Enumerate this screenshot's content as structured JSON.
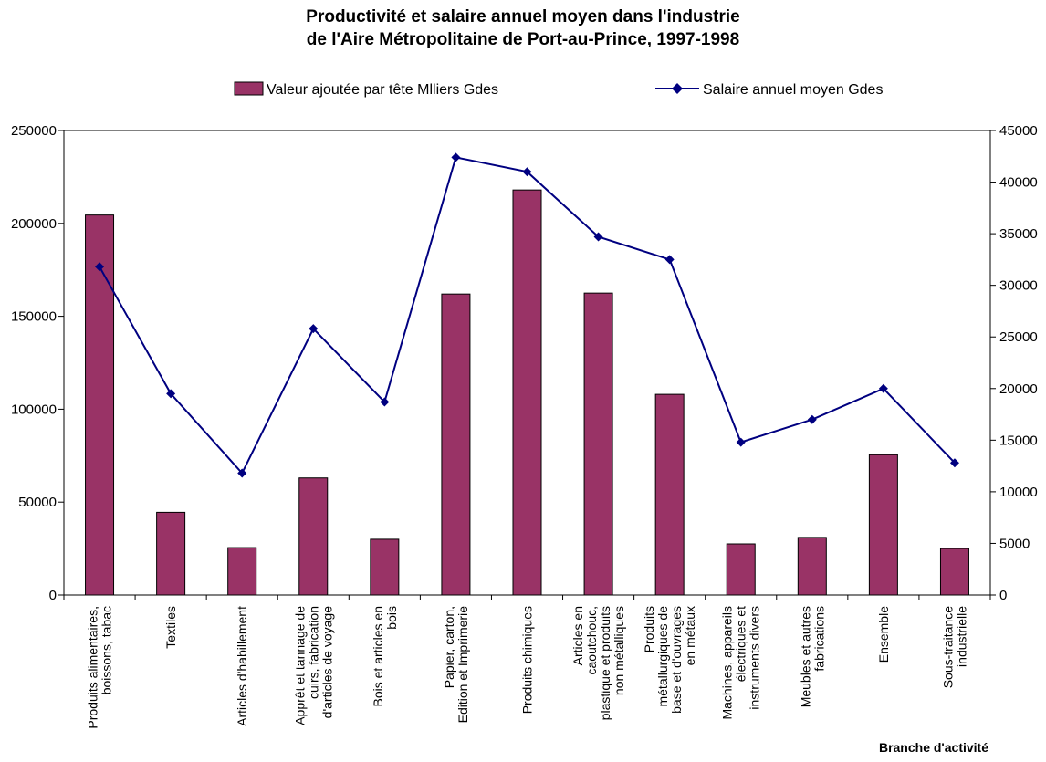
{
  "chart_data": {
    "type": "bar",
    "title": [
      "Productivité et salaire annuel moyen dans l'industrie",
      "de l'Aire Métropolitaine de Port-au-Prince, 1997-1998"
    ],
    "xlabel": "Branche d'activité",
    "categories": [
      [
        "Produits alimentaires,",
        "boissons, tabac"
      ],
      [
        "Textiles"
      ],
      [
        "Articles d'habillement"
      ],
      [
        "Apprêt et tannage de",
        "cuirs, fabrication",
        "d'articles de voyage"
      ],
      [
        "Bois et articles en",
        "bois"
      ],
      [
        "Papier, carton,",
        "Edition et Imprimerie"
      ],
      [
        "Produits chimiques"
      ],
      [
        "Articles en",
        "caoutchouc,",
        "plastique et produits",
        "non métalliques"
      ],
      [
        "Produits",
        "métallurgiques de",
        "base et d'ouvrages",
        "en métaux"
      ],
      [
        "Machines, appareils",
        "électriques et",
        "instruments divers"
      ],
      [
        "Meubles et autres",
        "fabrications"
      ],
      [
        "Ensemble"
      ],
      [
        "Sous-traitance",
        "industrielle"
      ]
    ],
    "series": [
      {
        "name": "Valeur ajoutée par tête Mlliers Gdes",
        "kind": "bar",
        "axis": "left",
        "color": "#993366",
        "values": [
          204500,
          44500,
          25500,
          63000,
          30000,
          162000,
          218000,
          162500,
          108000,
          27500,
          31000,
          75500,
          25000
        ]
      },
      {
        "name": "Salaire annuel moyen Gdes",
        "kind": "line",
        "axis": "right",
        "color": "#000080",
        "values": [
          31800,
          19500,
          11800,
          25800,
          18700,
          42400,
          41000,
          34700,
          32500,
          14800,
          17000,
          20000,
          12800
        ]
      }
    ],
    "ylim_left": [
      0,
      250000
    ],
    "ylim_right": [
      0,
      45000
    ],
    "yticks_left": [
      "0",
      "50000",
      "100000",
      "150000",
      "200000",
      "250000"
    ],
    "yticks_right": [
      "0",
      "5000",
      "10000",
      "15000",
      "20000",
      "25000",
      "30000",
      "35000",
      "40000",
      "45000"
    ],
    "legend_position": "top",
    "grid": false
  }
}
